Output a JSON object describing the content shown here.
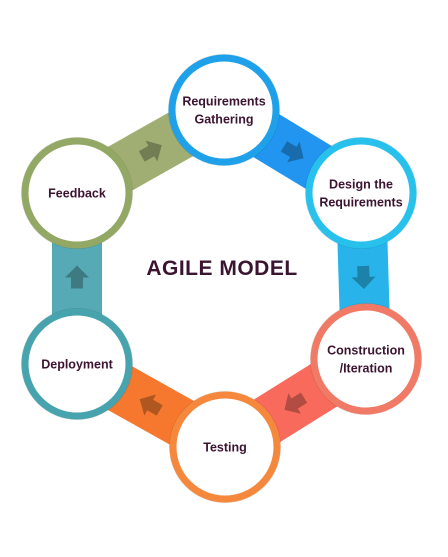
{
  "diagram": {
    "title": "AGILE MODEL",
    "stages": [
      {
        "lines": [
          "Requirements",
          "Gathering"
        ],
        "color": "#1ea1e8"
      },
      {
        "lines": [
          "Design the",
          "Requirements"
        ],
        "color": "#28c1ec"
      },
      {
        "lines": [
          "Construction",
          "/Iteration"
        ],
        "color": "#f07a66"
      },
      {
        "lines": [
          "Testing"
        ],
        "color": "#f5883d"
      },
      {
        "lines": [
          "Deployment"
        ],
        "color": "#47a3ad"
      },
      {
        "lines": [
          "Feedback"
        ],
        "color": "#93a864"
      }
    ],
    "connector_colors": [
      "#2295f0",
      "#28b4ea",
      "#f86a5c",
      "#f5782e",
      "#56aab5",
      "#a0ae73"
    ]
  }
}
